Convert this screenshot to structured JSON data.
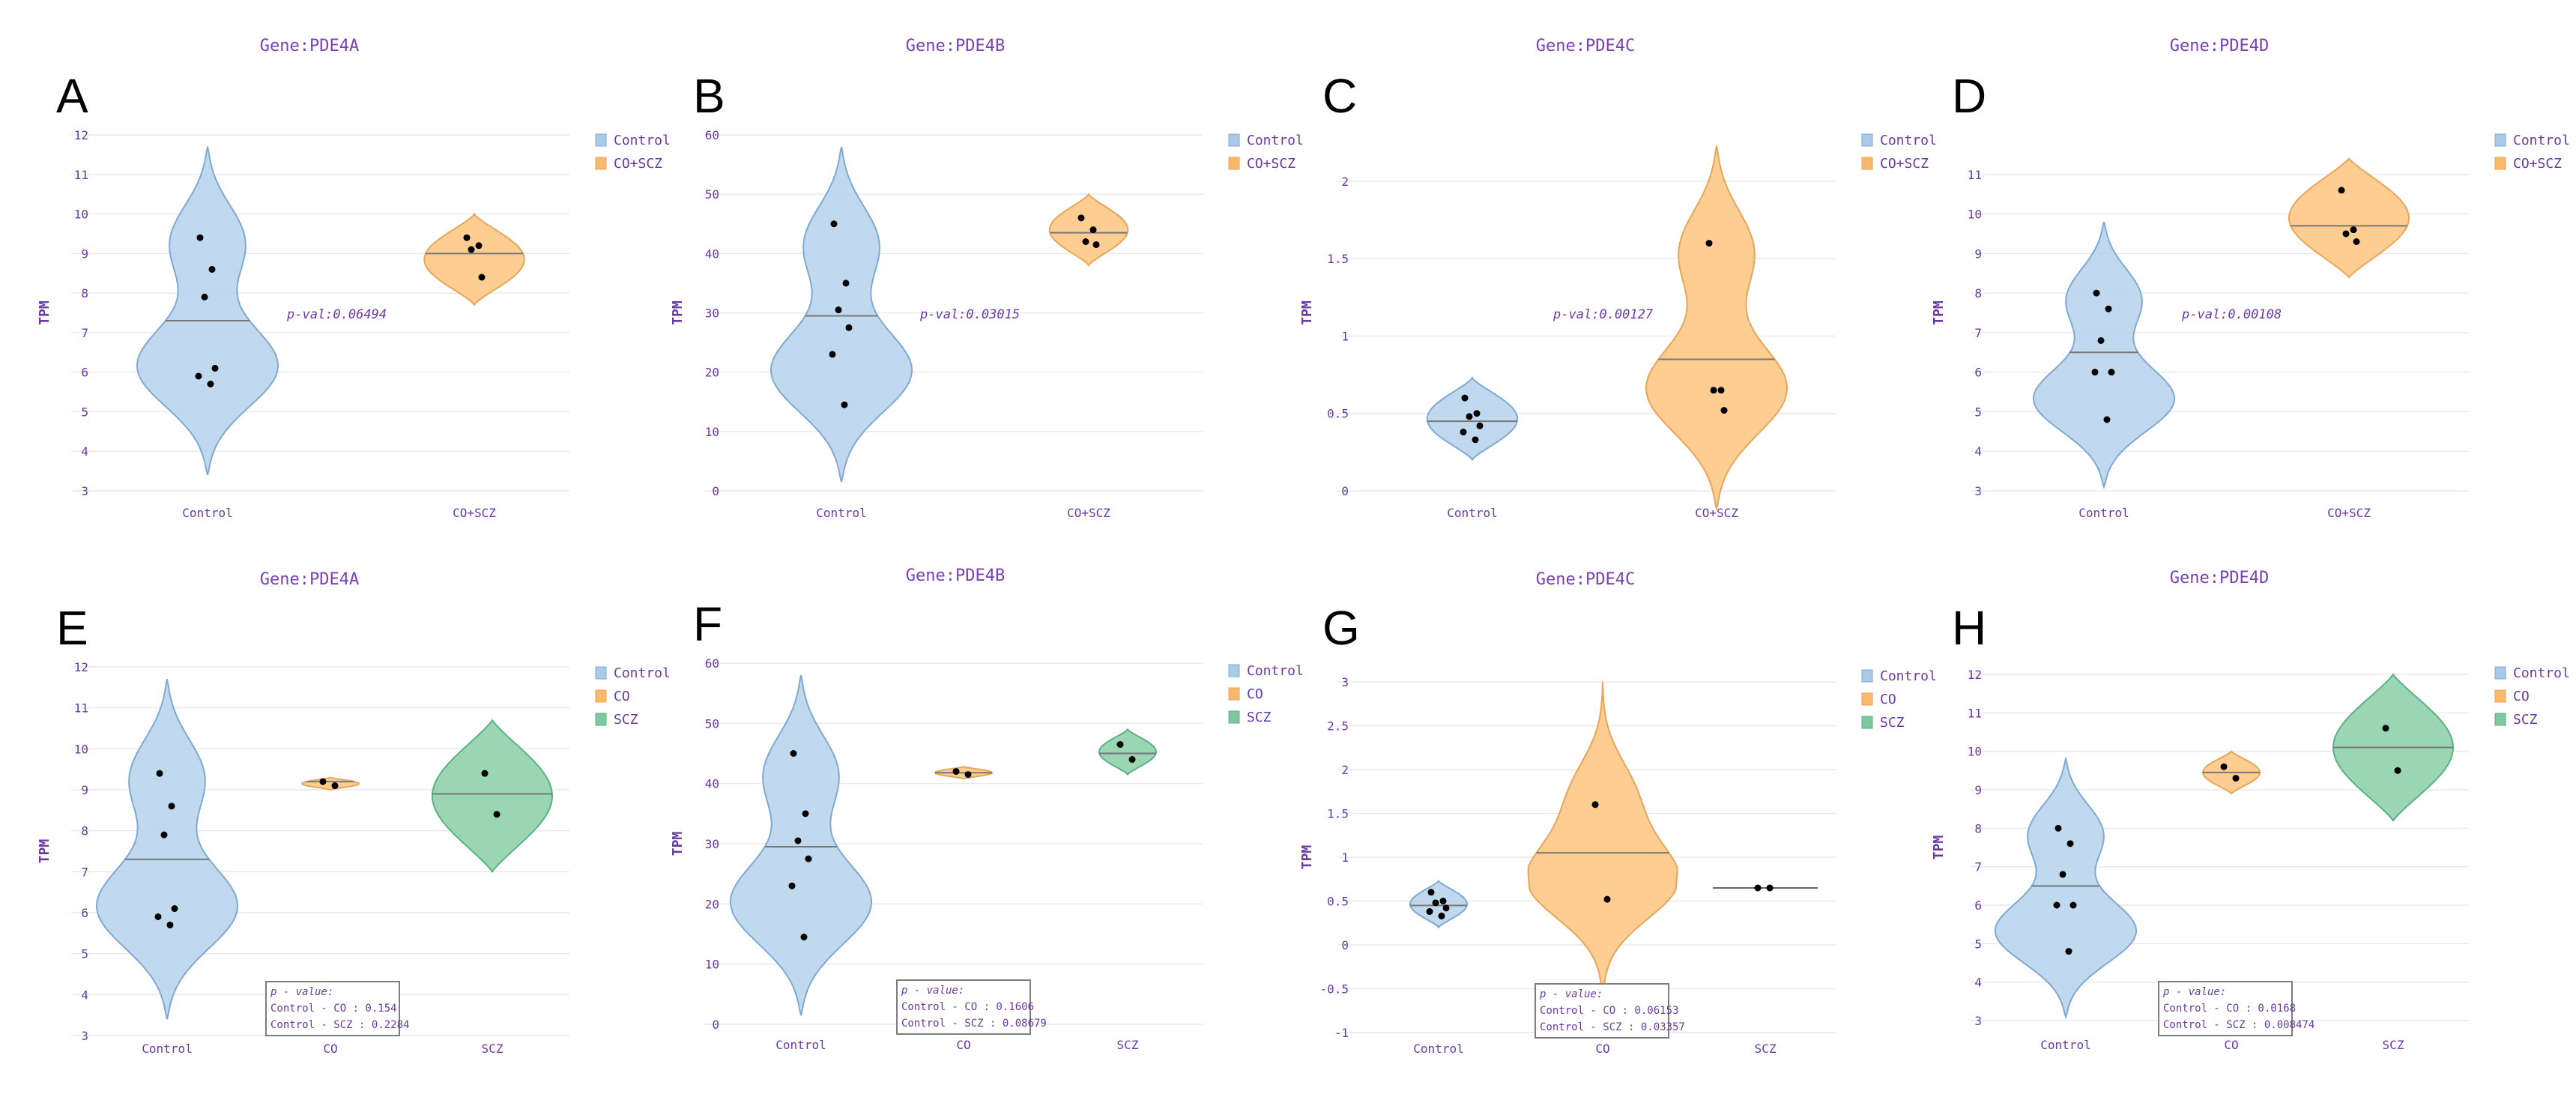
{
  "chart_data": [
    {
      "letter": "A",
      "title": "Gene:PDE4A",
      "type": "violin",
      "ylabel": "TPM",
      "ylim": [
        3,
        12
      ],
      "yticks": [
        3,
        4,
        5,
        6,
        7,
        8,
        9,
        10,
        11,
        12
      ],
      "categories": [
        "Control",
        "CO+SCZ"
      ],
      "legend": [
        "Control",
        "CO+SCZ"
      ],
      "groups": [
        {
          "name": "Control",
          "color": "blue",
          "range": [
            3.4,
            11.7
          ],
          "median": 7.3,
          "points": [
            9.4,
            8.6,
            7.9,
            6.1,
            5.9,
            5.7
          ],
          "shape": "wide-low"
        },
        {
          "name": "CO+SCZ",
          "color": "orange",
          "range": [
            7.7,
            10.0
          ],
          "median": 9.0,
          "points": [
            9.4,
            9.2,
            9.1,
            8.4
          ],
          "shape": "diamond"
        }
      ],
      "pvalue": "p-val:0.06494"
    },
    {
      "letter": "B",
      "title": "Gene:PDE4B",
      "type": "violin",
      "ylabel": "TPM",
      "ylim": [
        0,
        60
      ],
      "yticks": [
        0,
        10,
        20,
        30,
        40,
        50,
        60
      ],
      "categories": [
        "Control",
        "CO+SCZ"
      ],
      "legend": [
        "Control",
        "CO+SCZ"
      ],
      "groups": [
        {
          "name": "Control",
          "color": "blue",
          "range": [
            1.5,
            58
          ],
          "median": 29.5,
          "points": [
            45,
            35,
            30.5,
            27.5,
            23,
            14.5
          ],
          "shape": "wide-low"
        },
        {
          "name": "CO+SCZ",
          "color": "orange",
          "range": [
            38,
            50
          ],
          "median": 43.5,
          "points": [
            46,
            44,
            42,
            41.5
          ],
          "shape": "diamond"
        }
      ],
      "pvalue": "p-val:0.03015"
    },
    {
      "letter": "C",
      "title": "Gene:PDE4C",
      "type": "violin",
      "ylabel": "TPM",
      "ylim": [
        0,
        2.3
      ],
      "yticks": [
        0,
        0.5,
        1,
        1.5,
        2
      ],
      "categories": [
        "Control",
        "CO+SCZ"
      ],
      "legend": [
        "Control",
        "CO+SCZ"
      ],
      "groups": [
        {
          "name": "Control",
          "color": "blue",
          "range": [
            0.2,
            0.73
          ],
          "median": 0.45,
          "points": [
            0.6,
            0.5,
            0.48,
            0.42,
            0.38,
            0.33
          ],
          "shape": "diamond"
        },
        {
          "name": "CO+SCZ",
          "color": "orange",
          "range": [
            -0.12,
            2.23
          ],
          "median": 0.85,
          "points": [
            1.6,
            0.65,
            0.65,
            0.52
          ],
          "shape": "wide-low"
        }
      ],
      "pvalue": "p-val:0.00127"
    },
    {
      "letter": "D",
      "title": "Gene:PDE4D",
      "type": "violin",
      "ylabel": "TPM",
      "ylim": [
        3,
        12
      ],
      "yticks": [
        3,
        4,
        5,
        6,
        7,
        8,
        9,
        10,
        11
      ],
      "categories": [
        "Control",
        "CO+SCZ"
      ],
      "legend": [
        "Control",
        "CO+SCZ"
      ],
      "groups": [
        {
          "name": "Control",
          "color": "blue",
          "range": [
            3.1,
            9.8
          ],
          "median": 6.5,
          "points": [
            8.0,
            7.6,
            6.8,
            6.0,
            6.0,
            4.8
          ],
          "shape": "wide-low"
        },
        {
          "name": "CO+SCZ",
          "color": "orange",
          "range": [
            8.4,
            11.4
          ],
          "median": 9.7,
          "points": [
            10.6,
            9.6,
            9.5,
            9.3
          ],
          "shape": "mid"
        }
      ],
      "pvalue": "p-val:0.00108"
    },
    {
      "letter": "E",
      "title": "Gene:PDE4A",
      "type": "violin",
      "ylabel": "TPM",
      "ylim": [
        3,
        12
      ],
      "yticks": [
        3,
        4,
        5,
        6,
        7,
        8,
        9,
        10,
        11,
        12
      ],
      "categories": [
        "Control",
        "CO",
        "SCZ"
      ],
      "legend": [
        "Control",
        "CO",
        "SCZ"
      ],
      "groups": [
        {
          "name": "Control",
          "color": "blue",
          "range": [
            3.4,
            11.7
          ],
          "median": 7.3,
          "points": [
            9.4,
            8.6,
            7.9,
            6.1,
            5.9,
            5.7
          ],
          "shape": "wide-low"
        },
        {
          "name": "CO",
          "color": "orange",
          "range": [
            9.0,
            9.3
          ],
          "median": 9.2,
          "points": [
            9.2,
            9.1
          ],
          "shape": "diamond"
        },
        {
          "name": "SCZ",
          "color": "green",
          "range": [
            7.0,
            10.7
          ],
          "median": 8.9,
          "points": [
            9.4,
            8.4
          ],
          "shape": "mid"
        }
      ],
      "pbox": [
        "p - value:",
        "Control - CO : 0.154",
        "Control - SCZ : 0.2284"
      ]
    },
    {
      "letter": "F",
      "title": "Gene:PDE4B",
      "type": "violin",
      "ylabel": "TPM",
      "ylim": [
        0,
        60
      ],
      "yticks": [
        0,
        10,
        20,
        30,
        40,
        50,
        60
      ],
      "categories": [
        "Control",
        "CO",
        "SCZ"
      ],
      "legend": [
        "Control",
        "CO",
        "SCZ"
      ],
      "groups": [
        {
          "name": "Control",
          "color": "blue",
          "range": [
            1.5,
            58
          ],
          "median": 29.5,
          "points": [
            45,
            35,
            30.5,
            27.5,
            23,
            14.5
          ],
          "shape": "wide-low"
        },
        {
          "name": "CO",
          "color": "orange",
          "range": [
            40.8,
            42.8
          ],
          "median": 41.8,
          "points": [
            42,
            41.5
          ],
          "shape": "diamond"
        },
        {
          "name": "SCZ",
          "color": "green",
          "range": [
            41.5,
            49
          ],
          "median": 45,
          "points": [
            46.5,
            44
          ],
          "shape": "diamond"
        }
      ],
      "pbox": [
        "p - value:",
        "Control - CO : 0.1606",
        "Control - SCZ : 0.08679"
      ]
    },
    {
      "letter": "G",
      "title": "Gene:PDE4C",
      "type": "violin",
      "ylabel": "TPM",
      "ylim": [
        -1,
        3
      ],
      "yticks": [
        -1,
        -0.5,
        0,
        0.5,
        1,
        1.5,
        2,
        2.5,
        3
      ],
      "categories": [
        "Control",
        "CO",
        "SCZ"
      ],
      "legend": [
        "Control",
        "CO",
        "SCZ"
      ],
      "groups": [
        {
          "name": "Control",
          "color": "blue",
          "range": [
            0.2,
            0.73
          ],
          "median": 0.45,
          "points": [
            0.6,
            0.5,
            0.48,
            0.42,
            0.38,
            0.33
          ],
          "shape": "diamond"
        },
        {
          "name": "CO",
          "color": "orange",
          "range": [
            -0.95,
            3.0
          ],
          "median": 1.05,
          "points": [
            1.6,
            0.52
          ],
          "shape": "wide-mid"
        },
        {
          "name": "SCZ",
          "color": "green",
          "range": [
            0.65,
            0.65
          ],
          "median": 0.65,
          "points": [
            0.65,
            0.65
          ],
          "shape": "line"
        }
      ],
      "pbox": [
        "p - value:",
        "Control - CO : 0.06153",
        "Control - SCZ : 0.03357"
      ]
    },
    {
      "letter": "H",
      "title": "Gene:PDE4D",
      "type": "violin",
      "ylabel": "TPM",
      "ylim": [
        3,
        12
      ],
      "yticks": [
        3,
        4,
        5,
        6,
        7,
        8,
        9,
        10,
        11,
        12
      ],
      "categories": [
        "Control",
        "CO",
        "SCZ"
      ],
      "legend": [
        "Control",
        "CO",
        "SCZ"
      ],
      "groups": [
        {
          "name": "Control",
          "color": "blue",
          "range": [
            3.1,
            9.8
          ],
          "median": 6.5,
          "points": [
            8.0,
            7.6,
            6.8,
            6.0,
            6.0,
            4.8
          ],
          "shape": "wide-low"
        },
        {
          "name": "CO",
          "color": "orange",
          "range": [
            8.9,
            10.0
          ],
          "median": 9.45,
          "points": [
            9.6,
            9.3
          ],
          "shape": "diamond"
        },
        {
          "name": "SCZ",
          "color": "green",
          "range": [
            8.2,
            12.0
          ],
          "median": 10.1,
          "points": [
            10.6,
            9.5
          ],
          "shape": "mid"
        }
      ],
      "pbox": [
        "p - value:",
        "Control - CO : 0.0168",
        "Control - SCZ : 0.008474"
      ]
    }
  ],
  "colors": {
    "blue": {
      "fill": "#b9d5ec",
      "stroke": "#7fa9d3",
      "swatch": "#a9cbe8"
    },
    "orange": {
      "fill": "#fdc886",
      "stroke": "#e8a55a",
      "swatch": "#f9b96a"
    },
    "green": {
      "fill": "#8fd1ab",
      "stroke": "#5bb184",
      "swatch": "#7fc79d"
    },
    "median": "#777777",
    "point": "#000000"
  }
}
